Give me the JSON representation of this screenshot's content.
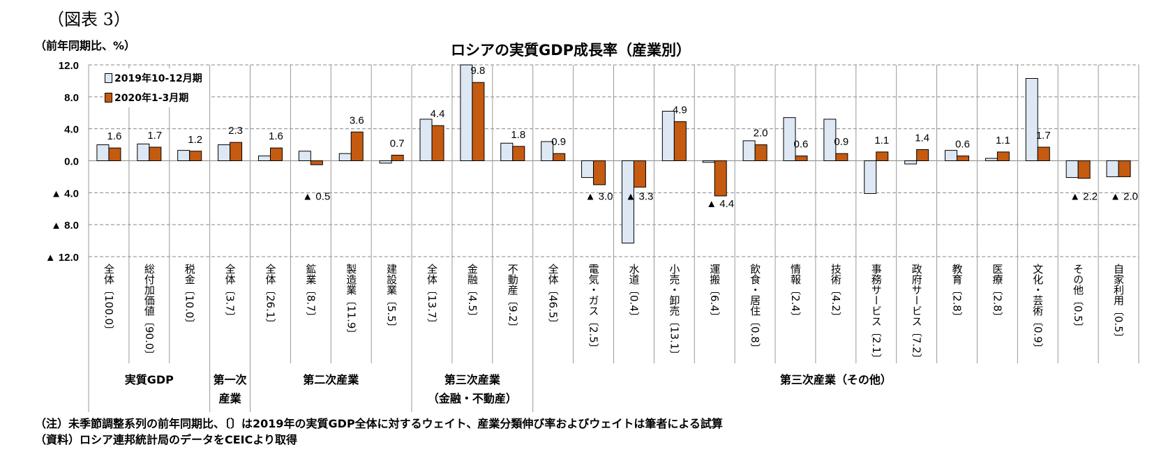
{
  "figure_label": "（図表 3）",
  "unit_label": "（前年同期比、%）",
  "notes": [
    "（注）未季節調整系列の前年同期比、〔〕は2019年の実質GDP全体に対するウェイト、産業分類伸び率およびウェイトは筆者による試算",
    "（資料）ロシア連邦統計局のデータをCEICより取得"
  ],
  "colors": {
    "series_2019q4": "#dde8f4",
    "series_2020q1": "#c55a11"
  },
  "chart_data": {
    "type": "bar",
    "title": "ロシアの実質GDP成長率（産業別）",
    "ylabel": "（前年同期比、%）",
    "ylim": [
      -12,
      12
    ],
    "yticks": [
      12,
      8,
      4,
      0,
      -4,
      -8,
      -12
    ],
    "ytick_labels": [
      "12.0",
      "8.0",
      "4.0",
      "0.0",
      "▲ 4.0",
      "▲ 8.0",
      "▲ 12.0"
    ],
    "grid": true,
    "legend_position": "top-left",
    "categories": [
      "全体〔100.0〕",
      "総付加価値〔90.0〕",
      "税金〔10.0〕",
      "全体〔3.7〕",
      "全体〔26.1〕",
      "鉱業〔8.7〕",
      "製造業〔11.9〕",
      "建設業〔5.5〕",
      "全体〔13.7〕",
      "金融〔4.5〕",
      "不動産〔9.2〕",
      "全体〔46.5〕",
      "電気・ガス〔2.5〕",
      "水道〔0.4〕",
      "小売・卸売〔13.1〕",
      "運搬〔6.4〕",
      "飲食・居住〔0.8〕",
      "情報〔2.4〕",
      "技術〔4.2〕",
      "事務サービス〔2.1〕",
      "政府サービス〔7.2〕",
      "教育〔2.8〕",
      "医療〔2.8〕",
      "文化・芸術〔0.9〕",
      "その他〔0.5〕",
      "自家利用〔0.5〕"
    ],
    "groups": [
      {
        "label": "実質GDP",
        "span": 3
      },
      {
        "label": "第一次\n産業",
        "span": 1
      },
      {
        "label": "第二次産業",
        "span": 4
      },
      {
        "label": "第三次産業\n（金融・不動産）",
        "span": 3
      },
      {
        "label": "第三次産業（その他）",
        "span": 15
      }
    ],
    "series": [
      {
        "name": "2019年10-12月期",
        "values": [
          2.0,
          2.1,
          1.3,
          2.0,
          0.6,
          1.2,
          0.9,
          -0.3,
          5.2,
          12.0,
          2.2,
          2.4,
          -2.1,
          -10.3,
          6.2,
          -0.2,
          2.5,
          5.4,
          5.2,
          -4.1,
          -0.4,
          1.3,
          0.3,
          10.3,
          -2.1,
          -2.0
        ]
      },
      {
        "name": "2020年1-3月期",
        "values": [
          1.6,
          1.7,
          1.2,
          2.3,
          1.6,
          -0.5,
          3.6,
          0.7,
          4.4,
          9.8,
          1.8,
          0.9,
          -3.0,
          -3.3,
          4.9,
          -4.4,
          2.0,
          0.6,
          0.9,
          1.1,
          1.4,
          0.6,
          1.1,
          1.7,
          -2.2,
          -2.0
        ],
        "data_labels": [
          "1.6",
          "1.7",
          "1.2",
          "2.3",
          "1.6",
          "▲ 0.5",
          "3.6",
          "0.7",
          "4.4",
          "9.8",
          "1.8",
          "0.9",
          "▲ 3.0",
          "▲ 3.3",
          "4.9",
          "▲ 4.4",
          "2.0",
          "0.6",
          "0.9",
          "1.1",
          "1.4",
          "0.6",
          "1.1",
          "1.7",
          "▲ 2.2",
          "▲ 2.0"
        ]
      }
    ]
  }
}
